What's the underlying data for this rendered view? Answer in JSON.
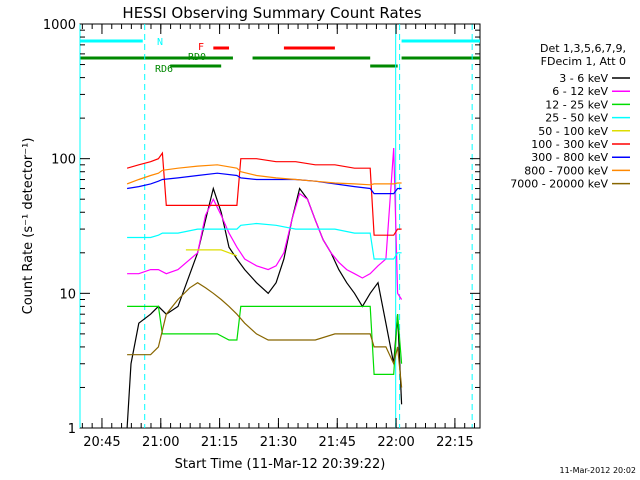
{
  "chart_data": {
    "type": "line",
    "title": "HESSI Observing Summary Count Rates",
    "ylabel": "Count Rate (s⁻¹ detector⁻¹)",
    "xlabel": "Start Time (11-Mar-12 20:39:22)",
    "x_start_min": 0,
    "xlim_minutes_after_2039": [
      0,
      102
    ],
    "ylim": [
      1,
      1000
    ],
    "y_scale": "log",
    "x_ticks": [
      {
        "label": "20:45",
        "min": 5.6
      },
      {
        "label": "21:00",
        "min": 20.6
      },
      {
        "label": "21:15",
        "min": 35.6
      },
      {
        "label": "21:30",
        "min": 50.6
      },
      {
        "label": "21:45",
        "min": 65.6
      },
      {
        "label": "22:00",
        "min": 80.6
      },
      {
        "label": "22:15",
        "min": 95.6
      }
    ],
    "y_ticks": [
      {
        "label": "1",
        "value": 1
      },
      {
        "label": "10",
        "value": 10
      },
      {
        "label": "100",
        "value": 100
      },
      {
        "label": "1000",
        "value": 1000
      }
    ],
    "legend_header": [
      "Det 1,3,5,6,7,9,",
      "FDecim 1, Att 0"
    ],
    "legend_placement": "right",
    "series": [
      {
        "name": "3 - 6 keV",
        "color": "#000000",
        "points": [
          [
            12,
            1
          ],
          [
            13,
            3
          ],
          [
            15,
            6
          ],
          [
            18,
            7
          ],
          [
            20,
            8
          ],
          [
            22,
            7
          ],
          [
            25,
            8
          ],
          [
            30,
            20
          ],
          [
            32,
            35
          ],
          [
            34,
            60
          ],
          [
            36,
            40
          ],
          [
            38,
            22
          ],
          [
            40,
            18
          ],
          [
            42,
            15
          ],
          [
            45,
            12
          ],
          [
            48,
            10
          ],
          [
            50,
            12
          ],
          [
            52,
            18
          ],
          [
            54,
            35
          ],
          [
            56,
            60
          ],
          [
            58,
            50
          ],
          [
            60,
            35
          ],
          [
            62,
            25
          ],
          [
            64,
            20
          ],
          [
            66,
            15
          ],
          [
            68,
            12
          ],
          [
            70,
            10
          ],
          [
            72,
            8
          ],
          [
            74,
            10
          ],
          [
            76,
            12
          ],
          [
            78,
            6
          ],
          [
            80,
            3
          ],
          [
            81,
            7
          ],
          [
            82,
            1.5
          ]
        ]
      },
      {
        "name": "6 - 12 keV",
        "color": "#ff00ff",
        "points": [
          [
            12,
            14
          ],
          [
            15,
            14
          ],
          [
            18,
            15
          ],
          [
            20,
            15
          ],
          [
            22,
            14
          ],
          [
            25,
            15
          ],
          [
            30,
            20
          ],
          [
            32,
            38
          ],
          [
            34,
            50
          ],
          [
            36,
            38
          ],
          [
            38,
            28
          ],
          [
            40,
            22
          ],
          [
            42,
            18
          ],
          [
            45,
            16
          ],
          [
            48,
            15
          ],
          [
            50,
            16
          ],
          [
            52,
            20
          ],
          [
            54,
            35
          ],
          [
            56,
            55
          ],
          [
            58,
            50
          ],
          [
            60,
            35
          ],
          [
            62,
            25
          ],
          [
            64,
            20
          ],
          [
            66,
            17
          ],
          [
            68,
            15
          ],
          [
            70,
            14
          ],
          [
            72,
            13
          ],
          [
            74,
            14
          ],
          [
            76,
            16
          ],
          [
            78,
            18
          ],
          [
            80,
            120
          ],
          [
            81,
            10
          ],
          [
            82,
            9
          ]
        ]
      },
      {
        "name": "12 - 25 keV",
        "color": "#00dd00",
        "points": [
          [
            12,
            8
          ],
          [
            15,
            8
          ],
          [
            18,
            8
          ],
          [
            20,
            8
          ],
          [
            21,
            5
          ],
          [
            25,
            5
          ],
          [
            30,
            5
          ],
          [
            35,
            5
          ],
          [
            38,
            4.5
          ],
          [
            40,
            4.5
          ],
          [
            41,
            8
          ],
          [
            45,
            8
          ],
          [
            50,
            8
          ],
          [
            55,
            8
          ],
          [
            60,
            8
          ],
          [
            65,
            8
          ],
          [
            70,
            8
          ],
          [
            74,
            8
          ],
          [
            75,
            2.5
          ],
          [
            78,
            2.5
          ],
          [
            80,
            2.5
          ],
          [
            81,
            7
          ],
          [
            82,
            3
          ]
        ]
      },
      {
        "name": "25 - 50 keV",
        "color": "#00ffff",
        "points": [
          [
            12,
            26
          ],
          [
            15,
            26
          ],
          [
            18,
            26
          ],
          [
            20,
            27
          ],
          [
            21,
            28
          ],
          [
            25,
            28
          ],
          [
            30,
            30
          ],
          [
            35,
            30
          ],
          [
            40,
            30
          ],
          [
            41,
            32
          ],
          [
            45,
            33
          ],
          [
            50,
            32
          ],
          [
            55,
            30
          ],
          [
            60,
            30
          ],
          [
            65,
            30
          ],
          [
            70,
            28
          ],
          [
            74,
            28
          ],
          [
            75,
            18
          ],
          [
            78,
            18
          ],
          [
            80,
            18
          ],
          [
            81,
            20
          ],
          [
            82,
            20
          ]
        ]
      },
      {
        "name": "50 - 100 keV",
        "color": "#dddd00",
        "points": [
          [
            27,
            21
          ],
          [
            30,
            21
          ],
          [
            33,
            21
          ],
          [
            36,
            21
          ],
          [
            38,
            20
          ],
          [
            40,
            19
          ]
        ]
      },
      {
        "name": "100 - 300 keV",
        "color": "#ff0000",
        "points": [
          [
            12,
            85
          ],
          [
            15,
            90
          ],
          [
            18,
            95
          ],
          [
            20,
            100
          ],
          [
            21,
            110
          ],
          [
            22,
            45
          ],
          [
            25,
            45
          ],
          [
            30,
            45
          ],
          [
            35,
            45
          ],
          [
            40,
            45
          ],
          [
            41,
            100
          ],
          [
            45,
            100
          ],
          [
            50,
            95
          ],
          [
            55,
            95
          ],
          [
            60,
            90
          ],
          [
            65,
            90
          ],
          [
            70,
            85
          ],
          [
            74,
            85
          ],
          [
            75,
            27
          ],
          [
            78,
            27
          ],
          [
            80,
            27
          ],
          [
            81,
            30
          ],
          [
            82,
            30
          ]
        ]
      },
      {
        "name": "300 - 800 keV",
        "color": "#0000ff",
        "points": [
          [
            12,
            60
          ],
          [
            15,
            62
          ],
          [
            18,
            65
          ],
          [
            20,
            68
          ],
          [
            21,
            70
          ],
          [
            25,
            72
          ],
          [
            30,
            75
          ],
          [
            35,
            78
          ],
          [
            40,
            75
          ],
          [
            41,
            72
          ],
          [
            45,
            70
          ],
          [
            50,
            70
          ],
          [
            55,
            70
          ],
          [
            60,
            68
          ],
          [
            65,
            65
          ],
          [
            70,
            62
          ],
          [
            74,
            60
          ],
          [
            75,
            55
          ],
          [
            78,
            55
          ],
          [
            80,
            55
          ],
          [
            81,
            60
          ],
          [
            82,
            60
          ]
        ]
      },
      {
        "name": "800 - 7000 keV",
        "color": "#ff8800",
        "points": [
          [
            12,
            65
          ],
          [
            15,
            70
          ],
          [
            18,
            75
          ],
          [
            20,
            78
          ],
          [
            21,
            82
          ],
          [
            25,
            85
          ],
          [
            30,
            88
          ],
          [
            35,
            90
          ],
          [
            40,
            85
          ],
          [
            41,
            80
          ],
          [
            45,
            75
          ],
          [
            50,
            72
          ],
          [
            55,
            70
          ],
          [
            60,
            68
          ],
          [
            65,
            66
          ],
          [
            70,
            65
          ],
          [
            74,
            64
          ],
          [
            75,
            65
          ],
          [
            78,
            65
          ],
          [
            80,
            65
          ],
          [
            81,
            66
          ],
          [
            82,
            66
          ]
        ]
      },
      {
        "name": "7000 - 20000 keV",
        "color": "#886600",
        "points": [
          [
            12,
            3.5
          ],
          [
            15,
            3.5
          ],
          [
            18,
            3.5
          ],
          [
            20,
            4
          ],
          [
            22,
            7
          ],
          [
            25,
            9
          ],
          [
            28,
            11
          ],
          [
            30,
            12
          ],
          [
            32,
            11
          ],
          [
            34,
            10
          ],
          [
            36,
            9
          ],
          [
            38,
            8
          ],
          [
            40,
            7
          ],
          [
            42,
            6
          ],
          [
            45,
            5
          ],
          [
            48,
            4.5
          ],
          [
            50,
            4.5
          ],
          [
            55,
            4.5
          ],
          [
            60,
            4.5
          ],
          [
            65,
            5
          ],
          [
            70,
            5
          ],
          [
            74,
            5
          ],
          [
            75,
            4
          ],
          [
            78,
            4
          ],
          [
            80,
            3
          ],
          [
            81,
            4
          ],
          [
            82,
            2
          ]
        ]
      }
    ],
    "flags": [
      {
        "label": "N",
        "color": "#00ffff",
        "segments": [
          [
            0,
            16
          ],
          [
            82,
            102
          ]
        ]
      },
      {
        "label": "F",
        "color": "#ff0000",
        "segments": [
          [
            34,
            38
          ],
          [
            52,
            65
          ]
        ]
      },
      {
        "label": "RD0",
        "color": "#008800",
        "segments": [
          [
            0,
            39
          ],
          [
            44,
            74
          ],
          [
            82,
            102
          ]
        ]
      },
      {
        "label": "RD6",
        "color": "#008800",
        "segments": [
          [
            23,
            36
          ],
          [
            74,
            81
          ]
        ]
      }
    ],
    "vlines_dashed": [
      16.5,
      81.5,
      100
    ],
    "vlines_solid": [
      0,
      80.5
    ]
  },
  "footer": {
    "timestamp": "11-Mar-2012 20:02"
  }
}
